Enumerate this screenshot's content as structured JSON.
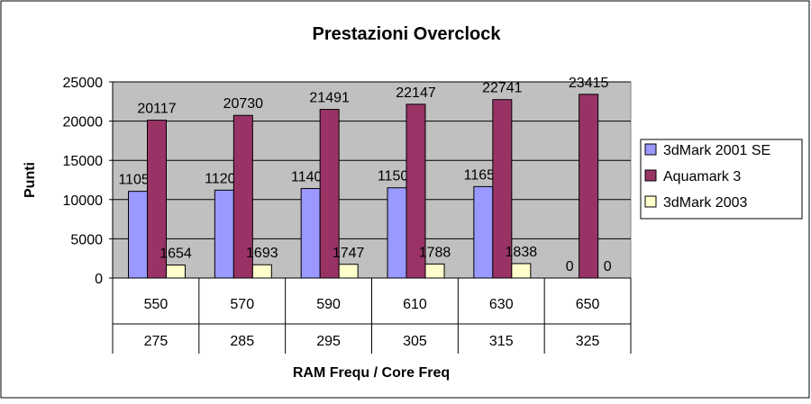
{
  "chart_data": {
    "type": "bar",
    "title": "Prestazioni Overclock",
    "xlabel": "RAM Frequ / Core Freq",
    "ylabel": "Punti",
    "ylim": [
      0,
      25000
    ],
    "yticks": [
      0,
      5000,
      10000,
      15000,
      20000,
      25000
    ],
    "grid": true,
    "legend_position": "right",
    "categories": [
      [
        "550",
        "275"
      ],
      [
        "570",
        "285"
      ],
      [
        "590",
        "295"
      ],
      [
        "610",
        "305"
      ],
      [
        "630",
        "315"
      ],
      [
        "650",
        "325"
      ]
    ],
    "series": [
      {
        "name": "3dMark 2001 SE",
        "color": "#9999ff",
        "values": [
          11050,
          11201,
          11407,
          11500,
          11654,
          0
        ]
      },
      {
        "name": "Aquamark 3",
        "color": "#993366",
        "values": [
          20117,
          20730,
          21491,
          22147,
          22741,
          23415
        ]
      },
      {
        "name": "3dMark 2003",
        "color": "#ffffcc",
        "values": [
          1654,
          1693,
          1747,
          1788,
          1838,
          0
        ]
      }
    ],
    "colors": {
      "plot_background": "#c0c0c0",
      "gridline": "#000000"
    }
  }
}
